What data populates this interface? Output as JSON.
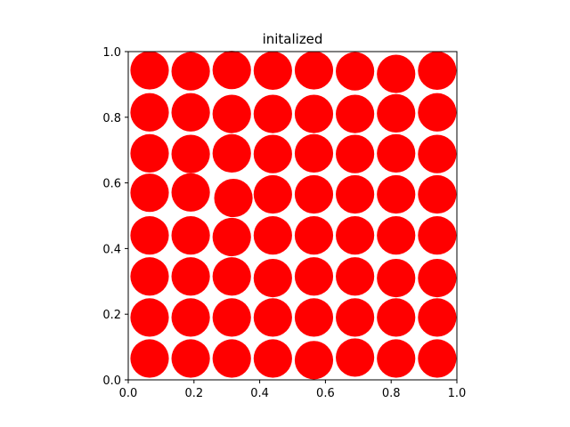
{
  "chart_data": {
    "type": "scatter",
    "title": "initalized",
    "xlabel": "",
    "ylabel": "",
    "xlim": [
      0.0,
      1.0
    ],
    "ylim": [
      0.0,
      1.0
    ],
    "xticks": [
      0.0,
      0.2,
      0.4,
      0.6,
      0.8,
      1.0
    ],
    "yticks": [
      0.0,
      0.2,
      0.4,
      0.6,
      0.8,
      1.0
    ],
    "xtick_labels": [
      "0.0",
      "0.2",
      "0.4",
      "0.6",
      "0.8",
      "1.0"
    ],
    "ytick_labels": [
      "0.0",
      "0.2",
      "0.4",
      "0.6",
      "0.8",
      "1.0"
    ],
    "grid": false,
    "aspect": "equal",
    "marker": "circle",
    "marker_radius": 0.0585,
    "marker_color": "#ff0000",
    "points": [
      {
        "x": 0.065,
        "y": 0.943
      },
      {
        "x": 0.19,
        "y": 0.94
      },
      {
        "x": 0.315,
        "y": 0.944
      },
      {
        "x": 0.44,
        "y": 0.942
      },
      {
        "x": 0.565,
        "y": 0.943
      },
      {
        "x": 0.69,
        "y": 0.94
      },
      {
        "x": 0.815,
        "y": 0.932
      },
      {
        "x": 0.94,
        "y": 0.942
      },
      {
        "x": 0.065,
        "y": 0.815
      },
      {
        "x": 0.19,
        "y": 0.815
      },
      {
        "x": 0.315,
        "y": 0.81
      },
      {
        "x": 0.44,
        "y": 0.81
      },
      {
        "x": 0.565,
        "y": 0.81
      },
      {
        "x": 0.69,
        "y": 0.81
      },
      {
        "x": 0.815,
        "y": 0.812
      },
      {
        "x": 0.94,
        "y": 0.815
      },
      {
        "x": 0.065,
        "y": 0.69
      },
      {
        "x": 0.19,
        "y": 0.688
      },
      {
        "x": 0.315,
        "y": 0.69
      },
      {
        "x": 0.44,
        "y": 0.688
      },
      {
        "x": 0.565,
        "y": 0.69
      },
      {
        "x": 0.69,
        "y": 0.688
      },
      {
        "x": 0.815,
        "y": 0.69
      },
      {
        "x": 0.94,
        "y": 0.688
      },
      {
        "x": 0.065,
        "y": 0.57
      },
      {
        "x": 0.19,
        "y": 0.571
      },
      {
        "x": 0.32,
        "y": 0.554
      },
      {
        "x": 0.44,
        "y": 0.565
      },
      {
        "x": 0.565,
        "y": 0.565
      },
      {
        "x": 0.69,
        "y": 0.565
      },
      {
        "x": 0.815,
        "y": 0.565
      },
      {
        "x": 0.94,
        "y": 0.565
      },
      {
        "x": 0.065,
        "y": 0.44
      },
      {
        "x": 0.19,
        "y": 0.44
      },
      {
        "x": 0.315,
        "y": 0.435
      },
      {
        "x": 0.44,
        "y": 0.44
      },
      {
        "x": 0.565,
        "y": 0.44
      },
      {
        "x": 0.69,
        "y": 0.44
      },
      {
        "x": 0.815,
        "y": 0.44
      },
      {
        "x": 0.94,
        "y": 0.44
      },
      {
        "x": 0.065,
        "y": 0.315
      },
      {
        "x": 0.19,
        "y": 0.315
      },
      {
        "x": 0.315,
        "y": 0.315
      },
      {
        "x": 0.44,
        "y": 0.31
      },
      {
        "x": 0.565,
        "y": 0.315
      },
      {
        "x": 0.69,
        "y": 0.315
      },
      {
        "x": 0.815,
        "y": 0.31
      },
      {
        "x": 0.94,
        "y": 0.31
      },
      {
        "x": 0.065,
        "y": 0.19
      },
      {
        "x": 0.19,
        "y": 0.19
      },
      {
        "x": 0.315,
        "y": 0.19
      },
      {
        "x": 0.44,
        "y": 0.19
      },
      {
        "x": 0.565,
        "y": 0.19
      },
      {
        "x": 0.69,
        "y": 0.19
      },
      {
        "x": 0.815,
        "y": 0.19
      },
      {
        "x": 0.94,
        "y": 0.19
      },
      {
        "x": 0.065,
        "y": 0.065
      },
      {
        "x": 0.19,
        "y": 0.065
      },
      {
        "x": 0.315,
        "y": 0.065
      },
      {
        "x": 0.44,
        "y": 0.065
      },
      {
        "x": 0.565,
        "y": 0.06
      },
      {
        "x": 0.69,
        "y": 0.068
      },
      {
        "x": 0.815,
        "y": 0.065
      },
      {
        "x": 0.94,
        "y": 0.065
      }
    ]
  }
}
